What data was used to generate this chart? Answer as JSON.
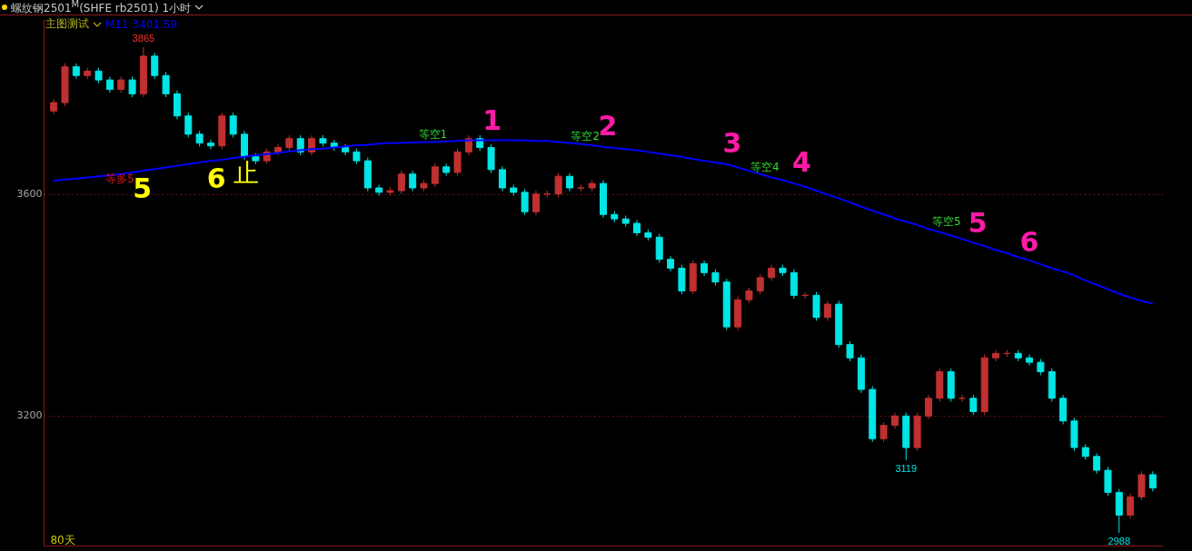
{
  "chart_data": {
    "type": "candlestick",
    "title": "螺纹钢2501$^{M}$(SHFE rb2501)  1小时",
    "subtitle": "主图测试",
    "categories": [
      null,
      null,
      null,
      null,
      null,
      null,
      null,
      null,
      null,
      null,
      null,
      null,
      null,
      null,
      null,
      null,
      null,
      null,
      null,
      null,
      null,
      null,
      null,
      null,
      null,
      null,
      null,
      null,
      null,
      null,
      null,
      null,
      null,
      null,
      null,
      null,
      null,
      null,
      null,
      null,
      null,
      null,
      null,
      null,
      null,
      null,
      null,
      null,
      null,
      null,
      null,
      null,
      null,
      null,
      null,
      null,
      null,
      null,
      null,
      null,
      null,
      null,
      null,
      null,
      null,
      null,
      null,
      null,
      null,
      null,
      null,
      null,
      null,
      null,
      null,
      null,
      null,
      null,
      null,
      null,
      null,
      null,
      null,
      null,
      null,
      null,
      null,
      null,
      null,
      null,
      null,
      null,
      null,
      null,
      null,
      null,
      null,
      null,
      null
    ],
    "ohlc": [
      [
        3750,
        3771,
        3744,
        3765
      ],
      [
        3765,
        3836,
        3759,
        3830
      ],
      [
        3830,
        3836,
        3808,
        3814
      ],
      [
        3814,
        3828,
        3808,
        3822
      ],
      [
        3822,
        3828,
        3800,
        3806
      ],
      [
        3806,
        3812,
        3783,
        3789
      ],
      [
        3789,
        3812,
        3783,
        3806
      ],
      [
        3806,
        3812,
        3775,
        3781
      ],
      [
        3781,
        3865,
        3775,
        3849
      ],
      [
        3849,
        3855,
        3808,
        3814
      ],
      [
        3814,
        3820,
        3775,
        3781
      ],
      [
        3781,
        3787,
        3735,
        3741
      ],
      [
        3741,
        3747,
        3702,
        3708
      ],
      [
        3708,
        3714,
        3686,
        3692
      ],
      [
        3692,
        3698,
        3681,
        3687
      ],
      [
        3687,
        3747,
        3681,
        3741
      ],
      [
        3741,
        3747,
        3702,
        3708
      ],
      [
        3708,
        3714,
        3662,
        3668
      ],
      [
        3668,
        3674,
        3654,
        3660
      ],
      [
        3660,
        3682,
        3654,
        3676
      ],
      [
        3676,
        3690,
        3670,
        3684
      ],
      [
        3684,
        3706,
        3678,
        3700
      ],
      [
        3700,
        3706,
        3670,
        3676
      ],
      [
        3676,
        3706,
        3670,
        3700
      ],
      [
        3700,
        3706,
        3686,
        3692
      ],
      [
        3692,
        3698,
        3678,
        3684
      ],
      [
        3684,
        3690,
        3670,
        3676
      ],
      [
        3676,
        3682,
        3654,
        3660
      ],
      [
        3660,
        3666,
        3605,
        3611
      ],
      [
        3611,
        3617,
        3597,
        3603
      ],
      [
        3603,
        3612,
        3597,
        3606
      ],
      [
        3606,
        3642,
        3600,
        3636
      ],
      [
        3636,
        3642,
        3605,
        3611
      ],
      [
        3611,
        3625,
        3605,
        3619
      ],
      [
        3619,
        3655,
        3613,
        3649
      ],
      [
        3649,
        3655,
        3633,
        3639
      ],
      [
        3639,
        3682,
        3633,
        3676
      ],
      [
        3676,
        3706,
        3670,
        3700
      ],
      [
        3700,
        3706,
        3678,
        3684
      ],
      [
        3684,
        3690,
        3638,
        3644
      ],
      [
        3644,
        3650,
        3605,
        3611
      ],
      [
        3611,
        3617,
        3597,
        3603
      ],
      [
        3603,
        3609,
        3562,
        3568
      ],
      [
        3568,
        3606,
        3562,
        3600
      ],
      [
        3600,
        3606,
        3594,
        3600
      ],
      [
        3600,
        3638,
        3594,
        3632
      ],
      [
        3632,
        3638,
        3605,
        3611
      ],
      [
        3611,
        3617,
        3605,
        3611
      ],
      [
        3611,
        3625,
        3605,
        3619
      ],
      [
        3619,
        3625,
        3557,
        3563
      ],
      [
        3563,
        3569,
        3549,
        3555
      ],
      [
        3555,
        3561,
        3541,
        3547
      ],
      [
        3547,
        3553,
        3524,
        3530
      ],
      [
        3530,
        3536,
        3516,
        3522
      ],
      [
        3522,
        3528,
        3476,
        3482
      ],
      [
        3482,
        3488,
        3460,
        3466
      ],
      [
        3466,
        3472,
        3419,
        3425
      ],
      [
        3425,
        3480,
        3419,
        3474
      ],
      [
        3474,
        3480,
        3452,
        3458
      ],
      [
        3458,
        3464,
        3435,
        3441
      ],
      [
        3441,
        3447,
        3354,
        3360
      ],
      [
        3360,
        3415,
        3354,
        3409
      ],
      [
        3409,
        3431,
        3403,
        3425
      ],
      [
        3425,
        3455,
        3419,
        3449
      ],
      [
        3449,
        3472,
        3443,
        3466
      ],
      [
        3466,
        3472,
        3452,
        3458
      ],
      [
        3458,
        3464,
        3411,
        3417
      ],
      [
        3417,
        3423,
        3411,
        3417
      ],
      [
        3417,
        3423,
        3371,
        3377
      ],
      [
        3377,
        3407,
        3371,
        3401
      ],
      [
        3401,
        3407,
        3322,
        3328
      ],
      [
        3328,
        3334,
        3298,
        3304
      ],
      [
        3304,
        3310,
        3241,
        3247
      ],
      [
        3247,
        3253,
        3152,
        3158
      ],
      [
        3158,
        3188,
        3152,
        3182
      ],
      [
        3182,
        3205,
        3176,
        3199
      ],
      [
        3199,
        3205,
        3119,
        3142
      ],
      [
        3142,
        3205,
        3136,
        3199
      ],
      [
        3199,
        3237,
        3193,
        3231
      ],
      [
        3231,
        3285,
        3225,
        3279
      ],
      [
        3279,
        3285,
        3225,
        3231
      ],
      [
        3231,
        3237,
        3225,
        3231
      ],
      [
        3231,
        3237,
        3201,
        3207
      ],
      [
        3207,
        3310,
        3201,
        3304
      ],
      [
        3304,
        3318,
        3298,
        3312
      ],
      [
        3312,
        3318,
        3306,
        3312
      ],
      [
        3312,
        3318,
        3298,
        3304
      ],
      [
        3304,
        3310,
        3290,
        3296
      ],
      [
        3296,
        3302,
        3273,
        3279
      ],
      [
        3279,
        3285,
        3225,
        3231
      ],
      [
        3231,
        3237,
        3184,
        3190
      ],
      [
        3190,
        3196,
        3136,
        3142
      ],
      [
        3142,
        3148,
        3120,
        3126
      ],
      [
        3126,
        3132,
        3095,
        3101
      ],
      [
        3101,
        3107,
        3055,
        3061
      ],
      [
        3061,
        3067,
        2988,
        3020
      ],
      [
        3020,
        3059,
        3014,
        3053
      ],
      [
        3053,
        3099,
        3047,
        3093
      ],
      [
        3093,
        3099,
        3063,
        3069
      ]
    ],
    "colors": [
      "#c03030",
      "#c03030",
      "#00e5e5",
      "#c03030",
      "#00e5e5",
      "#00e5e5",
      "#c03030",
      "#00e5e5",
      "#c03030",
      "#00e5e5",
      "#00e5e5",
      "#00e5e5",
      "#00e5e5",
      "#00e5e5",
      "#00e5e5",
      "#c03030",
      "#00e5e5",
      "#00e5e5",
      "#00e5e5",
      "#c03030",
      "#c03030",
      "#c03030",
      "#00e5e5",
      "#c03030",
      "#00e5e5",
      "#00e5e5",
      "#00e5e5",
      "#00e5e5",
      "#00e5e5",
      "#00e5e5",
      "#c03030",
      "#c03030",
      "#00e5e5",
      "#c03030",
      "#c03030",
      "#00e5e5",
      "#c03030",
      "#c03030",
      "#00e5e5",
      "#00e5e5",
      "#00e5e5",
      "#00e5e5",
      "#00e5e5",
      "#c03030",
      "#c03030",
      "#c03030",
      "#00e5e5",
      "#c03030",
      "#c03030",
      "#00e5e5",
      "#00e5e5",
      "#00e5e5",
      "#00e5e5",
      "#00e5e5",
      "#00e5e5",
      "#00e5e5",
      "#00e5e5",
      "#c03030",
      "#00e5e5",
      "#00e5e5",
      "#00e5e5",
      "#c03030",
      "#c03030",
      "#c03030",
      "#c03030",
      "#00e5e5",
      "#00e5e5",
      "#c03030",
      "#00e5e5",
      "#c03030",
      "#00e5e5",
      "#00e5e5",
      "#00e5e5",
      "#00e5e5",
      "#c03030",
      "#c03030",
      "#00e5e5",
      "#c03030",
      "#c03030",
      "#c03030",
      "#00e5e5",
      "#c03030",
      "#00e5e5",
      "#c03030",
      "#c03030",
      "#c03030",
      "#00e5e5",
      "#00e5e5",
      "#00e5e5",
      "#00e5e5",
      "#00e5e5",
      "#00e5e5",
      "#00e5e5",
      "#00e5e5",
      "#00e5e5",
      "#00e5e5",
      "#c03030",
      "#c03030",
      "#00e5e5"
    ],
    "series": [
      {
        "type": "line",
        "name": "M11 3401.59",
        "color": "#0000ff",
        "values": [
          3624,
          3626,
          3628,
          3630,
          3632,
          3634,
          3636,
          3639,
          3642,
          3645,
          3648,
          3651,
          3654,
          3657,
          3660,
          3662,
          3665,
          3667,
          3670,
          3672,
          3674,
          3677,
          3679,
          3681,
          3682,
          3684,
          3686,
          3688,
          3689,
          3691,
          3692,
          3692,
          3693,
          3694,
          3694,
          3695,
          3696,
          3697,
          3697,
          3697,
          3697,
          3697,
          3697,
          3696,
          3696,
          3694,
          3692,
          3690,
          3688,
          3685,
          3683,
          3681,
          3679,
          3676,
          3673,
          3670,
          3667,
          3663,
          3660,
          3657,
          3654,
          3648,
          3642,
          3636,
          3630,
          3625,
          3619,
          3613,
          3606,
          3599,
          3592,
          3585,
          3577,
          3570,
          3563,
          3556,
          3550,
          3544,
          3537,
          3531,
          3525,
          3519,
          3512,
          3506,
          3499,
          3493,
          3486,
          3480,
          3473,
          3466,
          3460,
          3453,
          3444,
          3436,
          3428,
          3420,
          3413,
          3407,
          3402
        ]
      }
    ],
    "ylim": [
      2965,
      3916
    ],
    "yticks": [
      3600,
      3200
    ],
    "grid": "y",
    "tick_labels": "y",
    "annotations": [
      "等空1",
      "1",
      "等空2",
      "2",
      "3",
      "等空4",
      "4",
      "等空5",
      "5",
      "6",
      "等多5",
      "5",
      "6",
      "止",
      "80天",
      {
        "text": "3865",
        "y": 3865
      },
      {
        "text": "3119",
        "y": 3119
      },
      {
        "text": "2988",
        "y": 2988
      }
    ]
  }
}
